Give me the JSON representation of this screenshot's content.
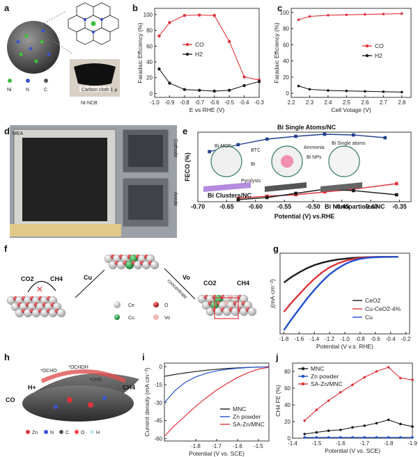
{
  "panels": {
    "a": {
      "label": "a",
      "legend": [
        "Ni",
        "N",
        "C"
      ],
      "caption": "Ni-NCB",
      "sample_tag": "Carbon cloth 1 µ"
    },
    "d": {
      "label": "d",
      "mea": "MEA",
      "cathode": "Cathode",
      "anode": "Anode"
    },
    "e_extra": {
      "bi_mof": "Bi-MOF",
      "btc": "BTC",
      "bi_ion": "Bi",
      "pyrolysis": "Pyrolysis",
      "ammonia": "Ammonia",
      "bi_nps": "Bi NPs",
      "bi_single_atoms": "Bi Single atoms"
    },
    "f": {
      "label": "f",
      "co2_left": "CO2",
      "ch4_left": "CH4",
      "cu_arrow": "Cu",
      "vo_arrow": "Vo",
      "concentrate": "concentrate",
      "co2_right": "CO2",
      "ch4_right": "CH4",
      "legend": [
        "Ce",
        "O",
        "Cu",
        "Vo"
      ]
    },
    "h": {
      "label": "h",
      "ocho": "*OCHO",
      "ocho_h": "*OCHOH",
      "cho": "*CHO",
      "co": "CO",
      "h_plus": "H+",
      "ch4": "CH4",
      "legend": [
        "Zn",
        "N",
        "C",
        "O",
        "H"
      ]
    }
  },
  "colors": {
    "red": "#e0323a",
    "black": "#1a1a1a",
    "navy": "#1f3f8c",
    "blue": "#1f4fd0",
    "ce_white": "#e8e8e8",
    "cu_green": "#2aa84a",
    "o_red": "#c8232a"
  },
  "chart_data": [
    {
      "panel": "b",
      "type": "line",
      "xlabel": "E vs RHE (V)",
      "ylabel": "Faradaic Efficiency (%)",
      "xlim": [
        -1.0,
        -0.3
      ],
      "ylim": [
        -5,
        108
      ],
      "xticks": [
        "-1.0",
        "-0.9",
        "-0.8",
        "-0.7",
        "-0.6",
        "-0.5",
        "-0.4",
        "-0.3"
      ],
      "yticks": [
        "0",
        "20",
        "40",
        "60",
        "80",
        "100"
      ],
      "legend": "center",
      "x": [
        -0.97,
        -0.9,
        -0.8,
        -0.7,
        -0.6,
        -0.5,
        -0.4,
        -0.3
      ],
      "series": [
        {
          "name": "CO",
          "values": [
            73,
            90,
            99,
            99.5,
            99,
            66,
            21,
            17
          ]
        },
        {
          "name": "H2",
          "values": [
            31,
            13,
            5,
            4,
            3,
            4,
            10,
            15
          ]
        }
      ]
    },
    {
      "panel": "c",
      "type": "line",
      "xlabel": "Cell Votage (V)",
      "ylabel": "Faradaic Efficiency (%)",
      "xlim": [
        2.2,
        2.85
      ],
      "ylim": [
        -5,
        105
      ],
      "xticks": [
        "2.2",
        "2.3",
        "2.4",
        "2.5",
        "2.6",
        "2.7",
        "2.8"
      ],
      "yticks": [
        "0",
        "20",
        "40",
        "60",
        "80",
        "100"
      ],
      "legend": "center",
      "x": [
        2.24,
        2.3,
        2.4,
        2.5,
        2.6,
        2.7,
        2.8
      ],
      "series": [
        {
          "name": "CO",
          "values": [
            91,
            95,
            96.5,
            97,
            97.5,
            98,
            98.5
          ]
        },
        {
          "name": "H2",
          "values": [
            9,
            5,
            3.5,
            3,
            2.5,
            2,
            1.5
          ]
        }
      ]
    },
    {
      "panel": "e",
      "type": "line",
      "xlabel": "Potential (V) vs.RHE",
      "ylabel": "FECO (%)",
      "xlim": [
        -0.7,
        -0.33
      ],
      "ylim": [
        0,
        100
      ],
      "xticks": [
        "-0.70",
        "-0.65",
        "-0.60",
        "-0.55",
        "-0.50",
        "-0.45",
        "-0.40",
        "-0.35"
      ],
      "yticks": [],
      "x": [
        -0.68,
        -0.63,
        -0.58,
        -0.53,
        -0.48,
        -0.43,
        -0.375,
        -0.355
      ],
      "series": [
        {
          "name": "Bi Single Atoms/NC",
          "x": [
            -0.68,
            -0.63,
            -0.58,
            -0.53,
            -0.48,
            -0.43,
            -0.375
          ],
          "values": [
            72,
            82,
            90,
            94,
            97,
            96,
            92
          ]
        },
        {
          "name": "Bi Clusters/NC",
          "x": [
            -0.63,
            -0.58,
            -0.53,
            -0.48,
            -0.43,
            -0.355
          ],
          "values": [
            5,
            8,
            10,
            14,
            18,
            26
          ]
        },
        {
          "name": "Bi Nanoparticles/NC",
          "x": [
            -0.63,
            -0.58,
            -0.53,
            -0.48,
            -0.43,
            -0.355
          ],
          "values": [
            3,
            6,
            12,
            18,
            16,
            10
          ]
        }
      ]
    },
    {
      "panel": "g",
      "type": "line",
      "xlabel": "Potential (V v.s. RHE)",
      "ylabel": "j(mA·cm⁻²)",
      "xlim": [
        -1.85,
        -0.15
      ],
      "ylim": [
        -84,
        4
      ],
      "xticks": [
        "-1.8",
        "-1.6",
        "-1.4",
        "-1.2",
        "-1.0",
        "-0.8",
        "-0.6",
        "-0.4",
        "-0.2"
      ],
      "yticks": [],
      "legend": "lower-right",
      "x": [
        -1.8,
        -1.7,
        -1.6,
        -1.5,
        -1.4,
        -1.3,
        -1.2,
        -1.1,
        -1.0,
        -0.9,
        -0.8,
        -0.7,
        -0.6,
        -0.5,
        -0.4,
        -0.3
      ],
      "series": [
        {
          "name": "CeO2",
          "values": [
            -28,
            -22,
            -17,
            -12.5,
            -9,
            -6.5,
            -4.5,
            -3,
            -2,
            -1.2,
            -0.7,
            -0.3,
            -0.1,
            0,
            0,
            0
          ]
        },
        {
          "name": "Cu-CeO2-4%",
          "values": [
            -60,
            -50,
            -41,
            -32,
            -24,
            -17,
            -11.5,
            -7.5,
            -4.5,
            -2.5,
            -1.2,
            -0.5,
            -0.2,
            0,
            0,
            0
          ]
        },
        {
          "name": "Cu",
          "values": [
            -80,
            -68,
            -57,
            -46,
            -36,
            -27,
            -19,
            -13,
            -8,
            -4.5,
            -2.2,
            -1,
            -0.4,
            -0.1,
            0,
            0
          ]
        }
      ]
    },
    {
      "panel": "i",
      "type": "line",
      "xlabel": "Potential (V vs. SCE)",
      "ylabel": "Current density (mA cm⁻²)",
      "xlim": [
        -1.95,
        -1.45
      ],
      "ylim": [
        -62,
        3
      ],
      "xticks": [
        "-1.8",
        "-1.7",
        "-1.6",
        "-1.5"
      ],
      "yticks": [
        "0",
        "-15",
        "-30",
        "-45",
        "-60"
      ],
      "legend": "lower-right",
      "x": [
        -1.95,
        -1.9,
        -1.85,
        -1.8,
        -1.75,
        -1.7,
        -1.65,
        -1.6,
        -1.55,
        -1.5,
        -1.45
      ],
      "series": [
        {
          "name": "MNC",
          "values": [
            -8,
            -6.5,
            -5.2,
            -4,
            -3,
            -2.2,
            -1.5,
            -1,
            -0.6,
            -0.3,
            -0.1
          ]
        },
        {
          "name": "Zn powder",
          "values": [
            -30,
            -20,
            -13,
            -8.5,
            -5.5,
            -3.5,
            -2.2,
            -1.3,
            -0.7,
            -0.3,
            -0.1
          ]
        },
        {
          "name": "SA-Zn/MNC",
          "values": [
            -58,
            -49,
            -41,
            -33,
            -26,
            -19.5,
            -14,
            -9,
            -5,
            -2,
            -0.5
          ]
        }
      ]
    },
    {
      "panel": "j",
      "type": "line",
      "xlabel": "Potential (V vs. SCE)",
      "ylabel": "CH4 FE (%)",
      "xlim": [
        -1.4,
        -1.9
      ],
      "ylim": [
        0,
        90
      ],
      "xticks": [
        "-1.4",
        "-1.5",
        "-1.6",
        "-1.7",
        "-1.8",
        "-1.9"
      ],
      "yticks": [
        "0",
        "20",
        "40",
        "60",
        "80"
      ],
      "legend": "top-left",
      "x": [
        -1.45,
        -1.5,
        -1.55,
        -1.6,
        -1.65,
        -1.7,
        -1.75,
        -1.8,
        -1.85,
        -1.9
      ],
      "series": [
        {
          "name": "MNC",
          "values": [
            5,
            7,
            9,
            10,
            13,
            15,
            18,
            22,
            17,
            14
          ]
        },
        {
          "name": "Zn powder",
          "values": [
            1,
            1,
            1,
            1,
            1,
            1,
            1,
            1,
            1,
            1
          ]
        },
        {
          "name": "SA-Zn/MNC",
          "values": [
            21,
            34,
            45,
            55,
            64,
            73,
            80,
            85,
            72,
            70
          ]
        }
      ]
    }
  ]
}
